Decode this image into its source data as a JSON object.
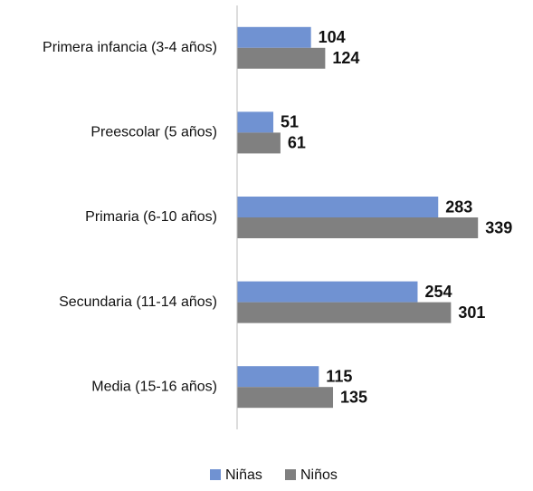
{
  "chart_data": {
    "type": "hbar",
    "categories": [
      "Primera infancia (3-4 años)",
      "Preescolar (5 años)",
      "Primaria (6-10 años)",
      "Secundaria (11-14 años)",
      "Media (15-16 años)"
    ],
    "series": [
      {
        "name": "Niñas",
        "color": "#7092d2",
        "values": [
          104,
          51,
          283,
          254,
          115
        ]
      },
      {
        "name": "Niños",
        "color": "#808080",
        "values": [
          124,
          61,
          339,
          301,
          135
        ]
      }
    ],
    "xlim": [
      0,
      340
    ],
    "legend": "bottom"
  }
}
